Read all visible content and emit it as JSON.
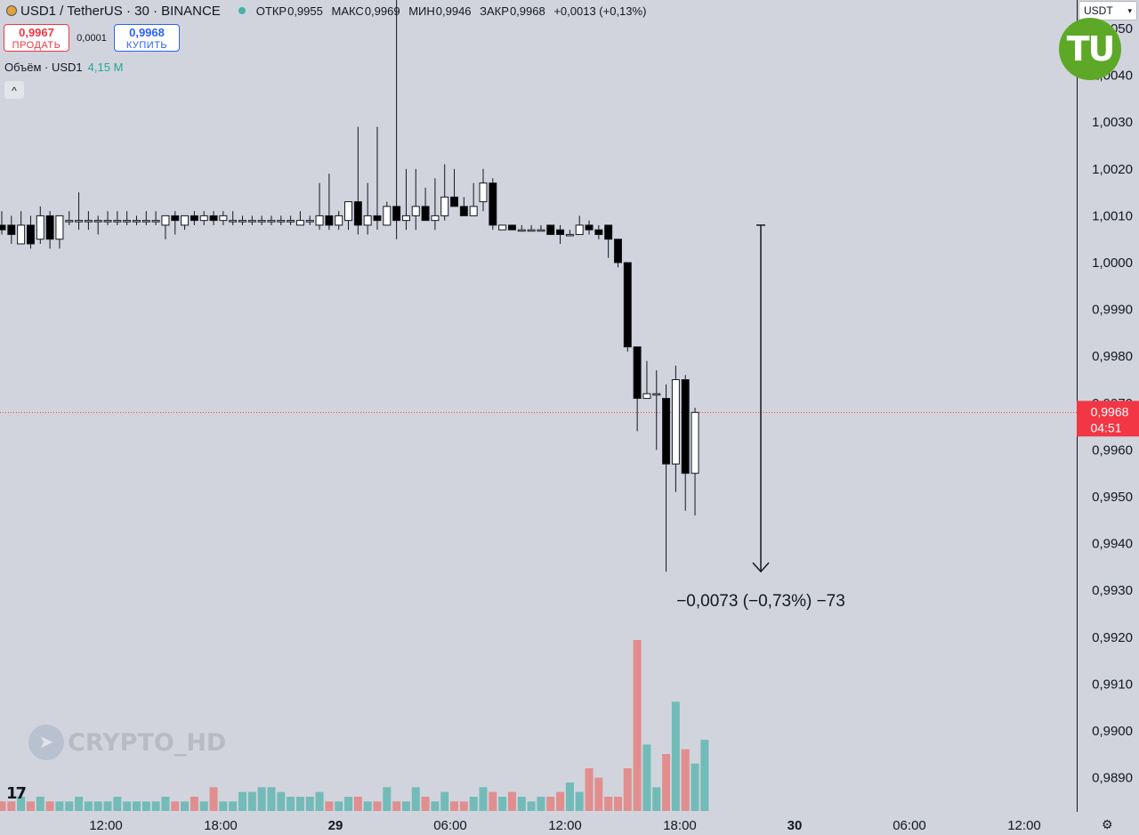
{
  "header": {
    "symbol": "USD1 / TetherUS · 30 · BINANCE",
    "ohlc": [
      {
        "key": "ОТКР",
        "value": "0,9955"
      },
      {
        "key": "МАКС",
        "value": "0,9969"
      },
      {
        "key": "МИН",
        "value": "0,9946"
      },
      {
        "key": "ЗАКР",
        "value": "0,9968"
      }
    ],
    "change": "+0,0013 (+0,13%)"
  },
  "trade": {
    "sell_price": "0,9967",
    "sell_label": "ПРОДАТЬ",
    "spread": "0,0001",
    "buy_price": "0,9968",
    "buy_label": "КУПИТЬ"
  },
  "volume_label": {
    "name": "Объём · USD1",
    "value": "4,15 M"
  },
  "collapse_glyph": "^",
  "currency_select": "USDT",
  "logo_text": "TU",
  "watermark": "CRYPTO_HD",
  "tv_logo": "17",
  "price_tag": {
    "price": "0,9968",
    "countdown": "04:51"
  },
  "measure_label": "−0,0073 (−0,73%) −73",
  "colors": {
    "up_volume": "#26a69a",
    "down_volume": "#ef5350",
    "price_line": "#f23645",
    "background": "#d1d4dc"
  },
  "chart_data": {
    "type": "candlestick",
    "interval": "30",
    "x_ticks": [
      "12:00",
      "18:00",
      "29",
      "06:00",
      "12:00",
      "18:00",
      "30",
      "06:00",
      "12:00"
    ],
    "y_ticks": [
      "0,9890",
      "0,9900",
      "0,9910",
      "0,9920",
      "0,9930",
      "0,9940",
      "0,9950",
      "0,9960",
      "0,9970",
      "0,9980",
      "0,9990",
      "1,0000",
      "1,0010",
      "1,0020",
      "1,0030",
      "1,0040",
      "1,0050"
    ],
    "ylim": [
      0.9883,
      1.0054
    ],
    "current_price": 0.9968,
    "candles": [
      {
        "o": 1.0008,
        "h": 1.0011,
        "l": 1.0006,
        "c": 1.0007
      },
      {
        "o": 1.0008,
        "h": 1.001,
        "l": 1.0004,
        "c": 1.0006
      },
      {
        "o": 1.0004,
        "h": 1.0011,
        "l": 1.0004,
        "c": 1.0008
      },
      {
        "o": 1.0008,
        "h": 1.001,
        "l": 1.0003,
        "c": 1.0004
      },
      {
        "o": 1.0005,
        "h": 1.0012,
        "l": 1.0004,
        "c": 1.001
      },
      {
        "o": 1.001,
        "h": 1.0011,
        "l": 1.0003,
        "c": 1.0005
      },
      {
        "o": 1.0005,
        "h": 1.001,
        "l": 1.0003,
        "c": 1.001
      },
      {
        "o": 1.0009,
        "h": 1.0011,
        "l": 1.0008,
        "c": 1.0009
      },
      {
        "o": 1.0009,
        "h": 1.0015,
        "l": 1.0007,
        "c": 1.0009
      },
      {
        "o": 1.0009,
        "h": 1.0011,
        "l": 1.0007,
        "c": 1.0009
      },
      {
        "o": 1.0009,
        "h": 1.001,
        "l": 1.0006,
        "c": 1.0009
      },
      {
        "o": 1.0009,
        "h": 1.0011,
        "l": 1.0008,
        "c": 1.0009
      },
      {
        "o": 1.0009,
        "h": 1.0011,
        "l": 1.0008,
        "c": 1.0009
      },
      {
        "o": 1.0009,
        "h": 1.0011,
        "l": 1.0008,
        "c": 1.0009
      },
      {
        "o": 1.0009,
        "h": 1.001,
        "l": 1.0008,
        "c": 1.0009
      },
      {
        "o": 1.0009,
        "h": 1.0011,
        "l": 1.0008,
        "c": 1.0009
      },
      {
        "o": 1.0009,
        "h": 1.0011,
        "l": 1.0008,
        "c": 1.0009
      },
      {
        "o": 1.0008,
        "h": 1.001,
        "l": 1.0005,
        "c": 1.001
      },
      {
        "o": 1.001,
        "h": 1.0011,
        "l": 1.0006,
        "c": 1.0009
      },
      {
        "o": 1.0008,
        "h": 1.001,
        "l": 1.0007,
        "c": 1.001
      },
      {
        "o": 1.001,
        "h": 1.0011,
        "l": 1.0008,
        "c": 1.0009
      },
      {
        "o": 1.0009,
        "h": 1.0011,
        "l": 1.0008,
        "c": 1.001
      },
      {
        "o": 1.001,
        "h": 1.0011,
        "l": 1.0008,
        "c": 1.0009
      },
      {
        "o": 1.0009,
        "h": 1.0011,
        "l": 1.0008,
        "c": 1.001
      },
      {
        "o": 1.0009,
        "h": 1.0011,
        "l": 1.0008,
        "c": 1.0009
      },
      {
        "o": 1.0009,
        "h": 1.001,
        "l": 1.0008,
        "c": 1.0009
      },
      {
        "o": 1.0009,
        "h": 1.001,
        "l": 1.0008,
        "c": 1.0009
      },
      {
        "o": 1.0009,
        "h": 1.001,
        "l": 1.0008,
        "c": 1.0009
      },
      {
        "o": 1.0009,
        "h": 1.001,
        "l": 1.0008,
        "c": 1.0009
      },
      {
        "o": 1.0009,
        "h": 1.001,
        "l": 1.0008,
        "c": 1.0009
      },
      {
        "o": 1.0009,
        "h": 1.001,
        "l": 1.0008,
        "c": 1.0009
      },
      {
        "o": 1.0008,
        "h": 1.0011,
        "l": 1.0008,
        "c": 1.0009
      },
      {
        "o": 1.0009,
        "h": 1.001,
        "l": 1.0008,
        "c": 1.0009
      },
      {
        "o": 1.0008,
        "h": 1.0017,
        "l": 1.0007,
        "c": 1.001
      },
      {
        "o": 1.001,
        "h": 1.0019,
        "l": 1.0007,
        "c": 1.0008
      },
      {
        "o": 1.0008,
        "h": 1.0011,
        "l": 1.0007,
        "c": 1.001
      },
      {
        "o": 1.0009,
        "h": 1.0012,
        "l": 1.0007,
        "c": 1.0013
      },
      {
        "o": 1.0013,
        "h": 1.0029,
        "l": 1.0006,
        "c": 1.0008
      },
      {
        "o": 1.0008,
        "h": 1.0017,
        "l": 1.0006,
        "c": 1.001
      },
      {
        "o": 1.001,
        "h": 1.0029,
        "l": 1.0007,
        "c": 1.0009
      },
      {
        "o": 1.0008,
        "h": 1.0013,
        "l": 1.0008,
        "c": 1.0012
      },
      {
        "o": 1.0012,
        "h": 1.0061,
        "l": 1.0005,
        "c": 1.0009
      },
      {
        "o": 1.0009,
        "h": 1.002,
        "l": 1.0007,
        "c": 1.001
      },
      {
        "o": 1.001,
        "h": 1.002,
        "l": 1.0007,
        "c": 1.0012
      },
      {
        "o": 1.0012,
        "h": 1.0016,
        "l": 1.0009,
        "c": 1.0009
      },
      {
        "o": 1.0009,
        "h": 1.0018,
        "l": 1.0007,
        "c": 1.001
      },
      {
        "o": 1.001,
        "h": 1.0021,
        "l": 1.0009,
        "c": 1.0014
      },
      {
        "o": 1.0014,
        "h": 1.002,
        "l": 1.0012,
        "c": 1.0012
      },
      {
        "o": 1.0012,
        "h": 1.0014,
        "l": 1.001,
        "c": 1.001
      },
      {
        "o": 1.001,
        "h": 1.0017,
        "l": 1.001,
        "c": 1.0012
      },
      {
        "o": 1.0013,
        "h": 1.002,
        "l": 1.0011,
        "c": 1.0017
      },
      {
        "o": 1.0017,
        "h": 1.0018,
        "l": 1.0007,
        "c": 1.0008
      },
      {
        "o": 1.0007,
        "h": 1.0008,
        "l": 1.0007,
        "c": 1.0008
      },
      {
        "o": 1.0008,
        "h": 1.0008,
        "l": 1.0007,
        "c": 1.0007
      },
      {
        "o": 1.0007,
        "h": 1.0008,
        "l": 1.0007,
        "c": 1.0007
      },
      {
        "o": 1.0007,
        "h": 1.0008,
        "l": 1.0007,
        "c": 1.0007
      },
      {
        "o": 1.0007,
        "h": 1.0008,
        "l": 1.0007,
        "c": 1.0007
      },
      {
        "o": 1.0008,
        "h": 1.0008,
        "l": 1.0006,
        "c": 1.0006
      },
      {
        "o": 1.0007,
        "h": 1.0008,
        "l": 1.0004,
        "c": 1.0006
      },
      {
        "o": 1.0006,
        "h": 1.0007,
        "l": 1.0006,
        "c": 1.0006
      },
      {
        "o": 1.0006,
        "h": 1.001,
        "l": 1.0006,
        "c": 1.0008
      },
      {
        "o": 1.0008,
        "h": 1.0009,
        "l": 1.0006,
        "c": 1.0007
      },
      {
        "o": 1.0007,
        "h": 1.0008,
        "l": 1.0005,
        "c": 1.0006
      },
      {
        "o": 1.0008,
        "h": 1.0008,
        "l": 1.0001,
        "c": 1.0005
      },
      {
        "o": 1.0005,
        "h": 1.0005,
        "l": 0.9999,
        "c": 1.0
      },
      {
        "o": 1.0,
        "h": 1.0,
        "l": 0.9981,
        "c": 0.9982
      },
      {
        "o": 0.9982,
        "h": 0.9982,
        "l": 0.9964,
        "c": 0.9971
      },
      {
        "o": 0.9971,
        "h": 0.9979,
        "l": 0.9971,
        "c": 0.9972
      },
      {
        "o": 0.9972,
        "h": 0.9977,
        "l": 0.996,
        "c": 0.9972
      },
      {
        "o": 0.9971,
        "h": 0.9974,
        "l": 0.9934,
        "c": 0.9957
      },
      {
        "o": 0.9957,
        "h": 0.9978,
        "l": 0.9951,
        "c": 0.9975
      },
      {
        "o": 0.9975,
        "h": 0.9976,
        "l": 0.9947,
        "c": 0.9955
      },
      {
        "o": 0.9955,
        "h": 0.9969,
        "l": 0.9946,
        "c": 0.9968
      }
    ],
    "volume_scale_max": 4.5,
    "volumes": [
      0.2,
      0.2,
      0.3,
      0.2,
      0.3,
      0.2,
      0.2,
      0.2,
      0.3,
      0.2,
      0.2,
      0.2,
      0.3,
      0.2,
      0.2,
      0.2,
      0.2,
      0.3,
      0.2,
      0.2,
      0.3,
      0.2,
      0.5,
      0.2,
      0.2,
      0.4,
      0.4,
      0.5,
      0.5,
      0.4,
      0.3,
      0.3,
      0.3,
      0.4,
      0.2,
      0.2,
      0.3,
      0.3,
      0.2,
      0.2,
      0.5,
      0.2,
      0.2,
      0.5,
      0.3,
      0.2,
      0.4,
      0.2,
      0.2,
      0.3,
      0.5,
      0.4,
      0.3,
      0.4,
      0.3,
      0.2,
      0.3,
      0.3,
      0.4,
      0.6,
      0.4,
      0.9,
      0.7,
      0.3,
      0.3,
      0.9,
      3.6,
      1.4,
      0.5,
      1.2,
      2.3,
      1.3,
      1.0,
      1.5
    ],
    "measure": {
      "from": 1.0008,
      "to": 0.9934,
      "change": -0.0073,
      "percent": -0.73,
      "ticks": -73
    }
  }
}
